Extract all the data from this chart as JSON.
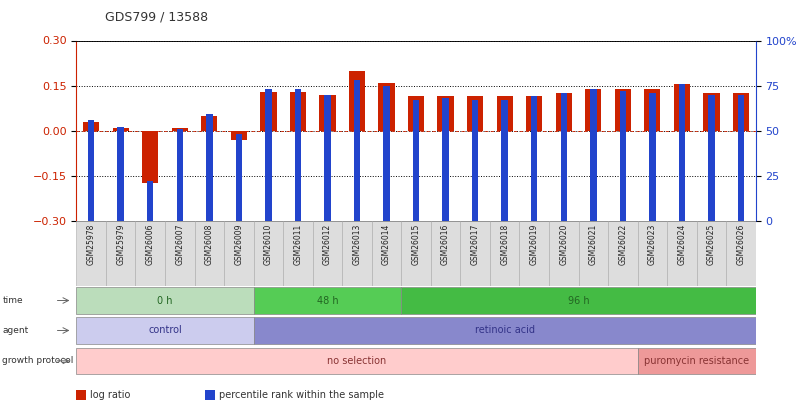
{
  "title": "GDS799 / 13588",
  "samples": [
    "GSM25978",
    "GSM25979",
    "GSM26006",
    "GSM26007",
    "GSM26008",
    "GSM26009",
    "GSM26010",
    "GSM26011",
    "GSM26012",
    "GSM26013",
    "GSM26014",
    "GSM26015",
    "GSM26016",
    "GSM26017",
    "GSM26018",
    "GSM26019",
    "GSM26020",
    "GSM26021",
    "GSM26022",
    "GSM26023",
    "GSM26024",
    "GSM26025",
    "GSM26026"
  ],
  "log_ratio": [
    0.03,
    0.01,
    -0.175,
    0.01,
    0.05,
    -0.03,
    0.13,
    0.13,
    0.12,
    0.2,
    0.16,
    0.115,
    0.115,
    0.115,
    0.115,
    0.115,
    0.125,
    0.14,
    0.14,
    0.14,
    0.155,
    0.125,
    0.125
  ],
  "percentile": [
    56,
    52,
    22,
    51,
    59,
    48,
    73,
    73,
    70,
    78,
    75,
    67,
    68,
    67,
    67,
    69,
    71,
    73,
    72,
    71,
    76,
    70,
    70
  ],
  "ylim_left": [
    -0.3,
    0.3
  ],
  "ylim_right": [
    0,
    100
  ],
  "yticks_left": [
    -0.3,
    -0.15,
    0.0,
    0.15,
    0.3
  ],
  "yticks_right": [
    0,
    25,
    50,
    75,
    100
  ],
  "bar_color_red": "#cc2200",
  "bar_color_blue": "#2244cc",
  "time_groups": [
    {
      "text": "0 h",
      "start": 0,
      "end": 5,
      "facecolor": "#bbddbb",
      "edgecolor": "#888888",
      "text_color": "#226622"
    },
    {
      "text": "48 h",
      "start": 6,
      "end": 10,
      "facecolor": "#55cc55",
      "edgecolor": "#888888",
      "text_color": "#226622"
    },
    {
      "text": "96 h",
      "start": 11,
      "end": 22,
      "facecolor": "#44bb44",
      "edgecolor": "#888888",
      "text_color": "#226622"
    }
  ],
  "agent_groups": [
    {
      "text": "control",
      "start": 0,
      "end": 5,
      "facecolor": "#ccccee",
      "edgecolor": "#888888",
      "text_color": "#333388"
    },
    {
      "text": "retinoic acid",
      "start": 6,
      "end": 22,
      "facecolor": "#8888cc",
      "edgecolor": "#888888",
      "text_color": "#333388"
    }
  ],
  "growth_groups": [
    {
      "text": "no selection",
      "start": 0,
      "end": 18,
      "facecolor": "#ffcccc",
      "edgecolor": "#888888",
      "text_color": "#883333"
    },
    {
      "text": "puromycin resistance",
      "start": 19,
      "end": 22,
      "facecolor": "#ee9999",
      "edgecolor": "#888888",
      "text_color": "#883333"
    }
  ],
  "row_labels": [
    "time",
    "agent",
    "growth protocol"
  ],
  "legend_items": [
    {
      "label": "log ratio",
      "color": "#cc2200"
    },
    {
      "label": "percentile rank within the sample",
      "color": "#2244cc"
    }
  ],
  "sample_bg": "#dddddd",
  "background_color": "#ffffff",
  "title_color": "#333333",
  "left_tick_color": "#cc2200",
  "right_tick_color": "#2244cc"
}
